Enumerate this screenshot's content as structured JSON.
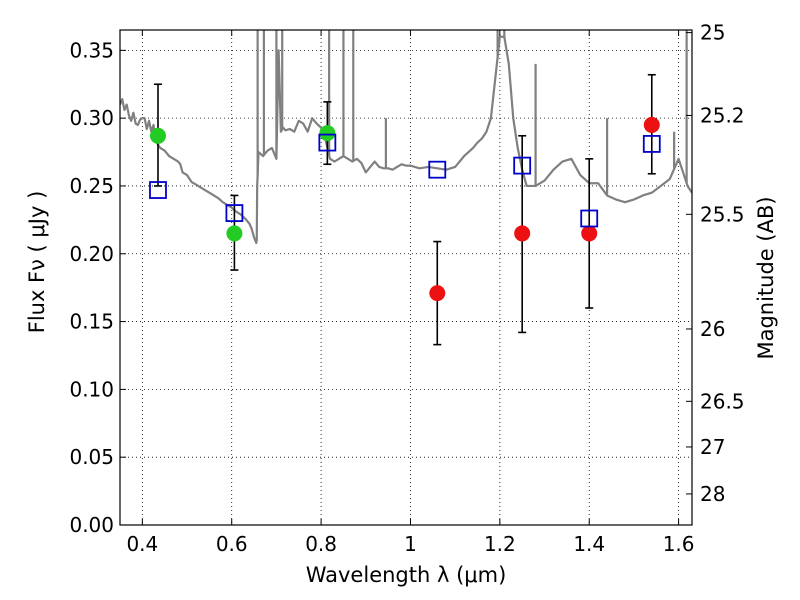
{
  "chart_data": {
    "type": "scatter",
    "title": "",
    "xlabel": "Wavelength  λ (μm)",
    "ylabel": "Flux  Fν  ( μJy )",
    "ylabel_right": "Magnitude (AB)",
    "xlim": [
      0.35,
      1.63
    ],
    "ylim": [
      0.0,
      0.365
    ],
    "grid": true,
    "x_ticks": [
      {
        "value": 0.4,
        "label": "0.4"
      },
      {
        "value": 0.6,
        "label": "0.6"
      },
      {
        "value": 0.8,
        "label": "0.8"
      },
      {
        "value": 1.0,
        "label": "1"
      },
      {
        "value": 1.2,
        "label": "1.2"
      },
      {
        "value": 1.4,
        "label": "1.4"
      },
      {
        "value": 1.6,
        "label": "1.6"
      }
    ],
    "y_ticks": [
      {
        "value": 0.0,
        "label": "0.00"
      },
      {
        "value": 0.05,
        "label": "0.05"
      },
      {
        "value": 0.1,
        "label": "0.10"
      },
      {
        "value": 0.15,
        "label": "0.15"
      },
      {
        "value": 0.2,
        "label": "0.20"
      },
      {
        "value": 0.25,
        "label": "0.25"
      },
      {
        "value": 0.3,
        "label": "0.30"
      },
      {
        "value": 0.35,
        "label": "0.35"
      }
    ],
    "y_ticks_right": [
      {
        "value": 25,
        "label": "25"
      },
      {
        "value": 25.2,
        "label": "25.2"
      },
      {
        "value": 25.5,
        "label": "25.5"
      },
      {
        "value": 26,
        "label": "26"
      },
      {
        "value": 26.5,
        "label": "26.5"
      },
      {
        "value": 27,
        "label": "27"
      },
      {
        "value": 28,
        "label": "28"
      }
    ],
    "ab_zero_point": 23.9,
    "colors": {
      "model": "#808080",
      "optical": "#22cc22",
      "infrared": "#ee1111",
      "synthetic": "#0000cc",
      "errorbar": "#000000"
    },
    "series": [
      {
        "marker": "circle-green",
        "points": [
          {
            "x": 0.435,
            "y": 0.287,
            "yerr_low": 0.037,
            "yerr_high": 0.038
          },
          {
            "x": 0.606,
            "y": 0.215,
            "yerr_low": 0.027,
            "yerr_high": 0.028
          },
          {
            "x": 0.814,
            "y": 0.289,
            "yerr_low": 0.023,
            "yerr_high": 0.023
          }
        ]
      },
      {
        "marker": "circle-red",
        "points": [
          {
            "x": 1.06,
            "y": 0.171,
            "yerr_low": 0.038,
            "yerr_high": 0.038
          },
          {
            "x": 1.25,
            "y": 0.215,
            "yerr_low": 0.073,
            "yerr_high": 0.072
          },
          {
            "x": 1.4,
            "y": 0.215,
            "yerr_low": 0.055,
            "yerr_high": 0.055
          },
          {
            "x": 1.54,
            "y": 0.295,
            "yerr_low": 0.036,
            "yerr_high": 0.037
          }
        ]
      },
      {
        "marker": "open-square-blue",
        "points": [
          {
            "x": 0.435,
            "y": 0.247
          },
          {
            "x": 0.606,
            "y": 0.23
          },
          {
            "x": 0.814,
            "y": 0.282
          },
          {
            "x": 1.06,
            "y": 0.262
          },
          {
            "x": 1.25,
            "y": 0.265
          },
          {
            "x": 1.4,
            "y": 0.226
          },
          {
            "x": 1.54,
            "y": 0.281
          }
        ]
      }
    ],
    "model_spectrum": {
      "x": [
        0.35,
        0.355,
        0.36,
        0.365,
        0.37,
        0.375,
        0.38,
        0.385,
        0.39,
        0.395,
        0.4,
        0.405,
        0.41,
        0.415,
        0.42,
        0.425,
        0.43,
        0.44,
        0.45,
        0.46,
        0.47,
        0.48,
        0.485,
        0.49,
        0.5,
        0.51,
        0.52,
        0.53,
        0.54,
        0.55,
        0.56,
        0.57,
        0.58,
        0.59,
        0.6,
        0.61,
        0.62,
        0.63,
        0.64,
        0.645,
        0.65,
        0.655,
        0.656,
        0.657,
        0.66,
        0.67,
        0.68,
        0.69,
        0.7,
        0.705,
        0.71,
        0.715,
        0.72,
        0.73,
        0.74,
        0.75,
        0.76,
        0.77,
        0.78,
        0.79,
        0.8,
        0.81,
        0.82,
        0.83,
        0.84,
        0.85,
        0.86,
        0.87,
        0.88,
        0.89,
        0.9,
        0.91,
        0.92,
        0.93,
        0.94,
        0.95,
        0.96,
        0.97,
        0.98,
        0.99,
        1.0,
        1.02,
        1.04,
        1.06,
        1.08,
        1.1,
        1.12,
        1.13,
        1.14,
        1.15,
        1.16,
        1.17,
        1.18,
        1.19,
        1.2,
        1.21,
        1.22,
        1.23,
        1.24,
        1.25,
        1.26,
        1.28,
        1.3,
        1.32,
        1.34,
        1.36,
        1.38,
        1.4,
        1.42,
        1.44,
        1.46,
        1.48,
        1.5,
        1.52,
        1.54,
        1.56,
        1.58,
        1.6,
        1.62,
        1.63
      ],
      "y": [
        0.31,
        0.314,
        0.306,
        0.31,
        0.302,
        0.298,
        0.304,
        0.296,
        0.295,
        0.299,
        0.3,
        0.3,
        0.292,
        0.298,
        0.29,
        0.295,
        0.283,
        0.278,
        0.276,
        0.272,
        0.27,
        0.268,
        0.266,
        0.26,
        0.258,
        0.253,
        0.251,
        0.249,
        0.247,
        0.245,
        0.243,
        0.241,
        0.238,
        0.236,
        0.234,
        0.231,
        0.229,
        0.226,
        0.222,
        0.218,
        0.212,
        0.208,
        0.21,
        0.25,
        0.275,
        0.272,
        0.276,
        0.278,
        0.27,
        0.35,
        0.29,
        0.293,
        0.291,
        0.292,
        0.29,
        0.298,
        0.296,
        0.29,
        0.3,
        0.296,
        0.293,
        0.284,
        0.27,
        0.268,
        0.27,
        0.272,
        0.27,
        0.268,
        0.27,
        0.267,
        0.26,
        0.264,
        0.268,
        0.264,
        0.263,
        0.263,
        0.262,
        0.264,
        0.266,
        0.265,
        0.265,
        0.263,
        0.264,
        0.263,
        0.262,
        0.264,
        0.272,
        0.275,
        0.278,
        0.282,
        0.285,
        0.29,
        0.3,
        0.33,
        0.36,
        0.36,
        0.34,
        0.3,
        0.278,
        0.262,
        0.25,
        0.25,
        0.254,
        0.262,
        0.268,
        0.27,
        0.258,
        0.252,
        0.252,
        0.243,
        0.24,
        0.238,
        0.24,
        0.243,
        0.245,
        0.25,
        0.255,
        0.27,
        0.25,
        0.245
      ],
      "spikes": [
        {
          "x": 0.658,
          "top": 0.365
        },
        {
          "x": 0.672,
          "top": 0.365
        },
        {
          "x": 0.7,
          "top": 0.365
        },
        {
          "x": 0.713,
          "top": 0.365
        },
        {
          "x": 0.818,
          "top": 0.365
        },
        {
          "x": 0.85,
          "top": 0.365
        },
        {
          "x": 0.872,
          "top": 0.365
        },
        {
          "x": 0.945,
          "top": 0.3
        },
        {
          "x": 1.195,
          "top": 0.365
        },
        {
          "x": 1.21,
          "top": 0.365
        },
        {
          "x": 1.28,
          "top": 0.34
        },
        {
          "x": 1.44,
          "top": 0.3
        },
        {
          "x": 1.59,
          "top": 0.29
        },
        {
          "x": 1.618,
          "top": 0.365
        }
      ]
    }
  }
}
